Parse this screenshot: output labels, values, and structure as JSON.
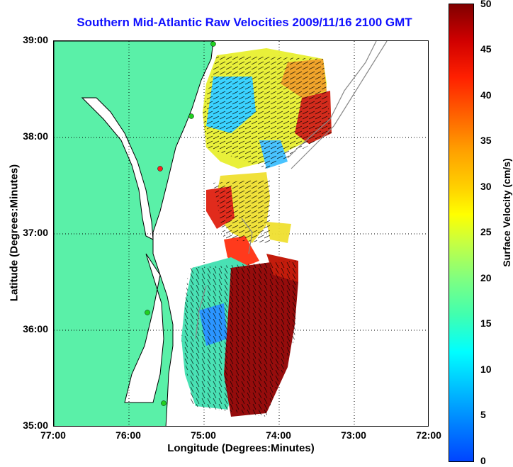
{
  "title": "Southern Mid-Atlantic Raw Velocities 2009/11/16 2100 GMT",
  "xlabel": "Longitude (Degrees:Minutes)",
  "ylabel": "Latitude (Degrees:Minutes)",
  "xticks": [
    "77:00",
    "76:00",
    "75:00",
    "74:00",
    "73:00",
    "72:00"
  ],
  "yticks": [
    "39:00",
    "38:00",
    "37:00",
    "36:00",
    "35:00"
  ],
  "colorbar": {
    "label": "Surface Velocity (cm/s)",
    "ticks": [
      "50",
      "45",
      "40",
      "35",
      "30",
      "25",
      "20",
      "15",
      "10",
      "5",
      "0"
    ],
    "min": 0,
    "max": 50
  },
  "colors": {
    "land": "#5af0a8",
    "coast": "#000000",
    "title": "#1010ff",
    "station": "#20d020",
    "station_alert": "#ff2020"
  }
}
